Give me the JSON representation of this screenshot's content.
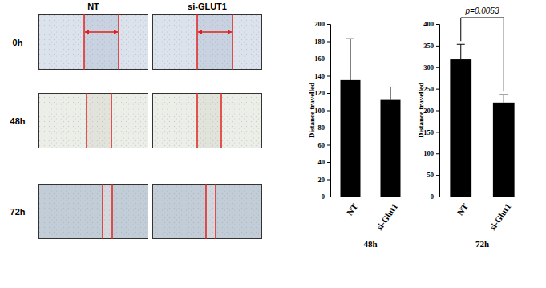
{
  "figure": {
    "columns": [
      "NT",
      "si-GLUT1"
    ],
    "rows": [
      "0h",
      "48h",
      "72h"
    ]
  },
  "chart_data": [
    {
      "type": "bar",
      "title": "48h",
      "ylabel": "Distance travelled",
      "categories": [
        "NT",
        "si-Glut1"
      ],
      "values": [
        135,
        112
      ],
      "errors": [
        48,
        15
      ],
      "color": "#000000",
      "ylim": [
        0,
        200
      ],
      "yticks": [
        0,
        20,
        40,
        60,
        80,
        100,
        120,
        140,
        160,
        180,
        200
      ]
    },
    {
      "type": "bar",
      "title": "72h",
      "ylabel": "Distance travelled",
      "categories": [
        "NT",
        "si-Glut1"
      ],
      "values": [
        318,
        218
      ],
      "errors": [
        35,
        18
      ],
      "color": "#000000",
      "ylim": [
        0,
        400
      ],
      "yticks": [
        0,
        50,
        100,
        150,
        200,
        250,
        300,
        350,
        400
      ],
      "annotation": "p=0.0053"
    }
  ]
}
